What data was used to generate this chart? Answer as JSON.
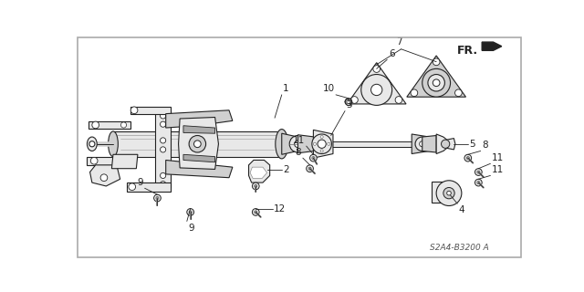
{
  "background_color": "#ffffff",
  "border_color": "#cccccc",
  "diagram_code": "S2A4-B3200 A",
  "lw": 0.8,
  "part_color": "#222222",
  "fill_light": "#e8e8e8",
  "fill_mid": "#d0d0d0",
  "fill_dark": "#aaaaaa",
  "label_fontsize": 7.5,
  "code_fontsize": 6.5
}
